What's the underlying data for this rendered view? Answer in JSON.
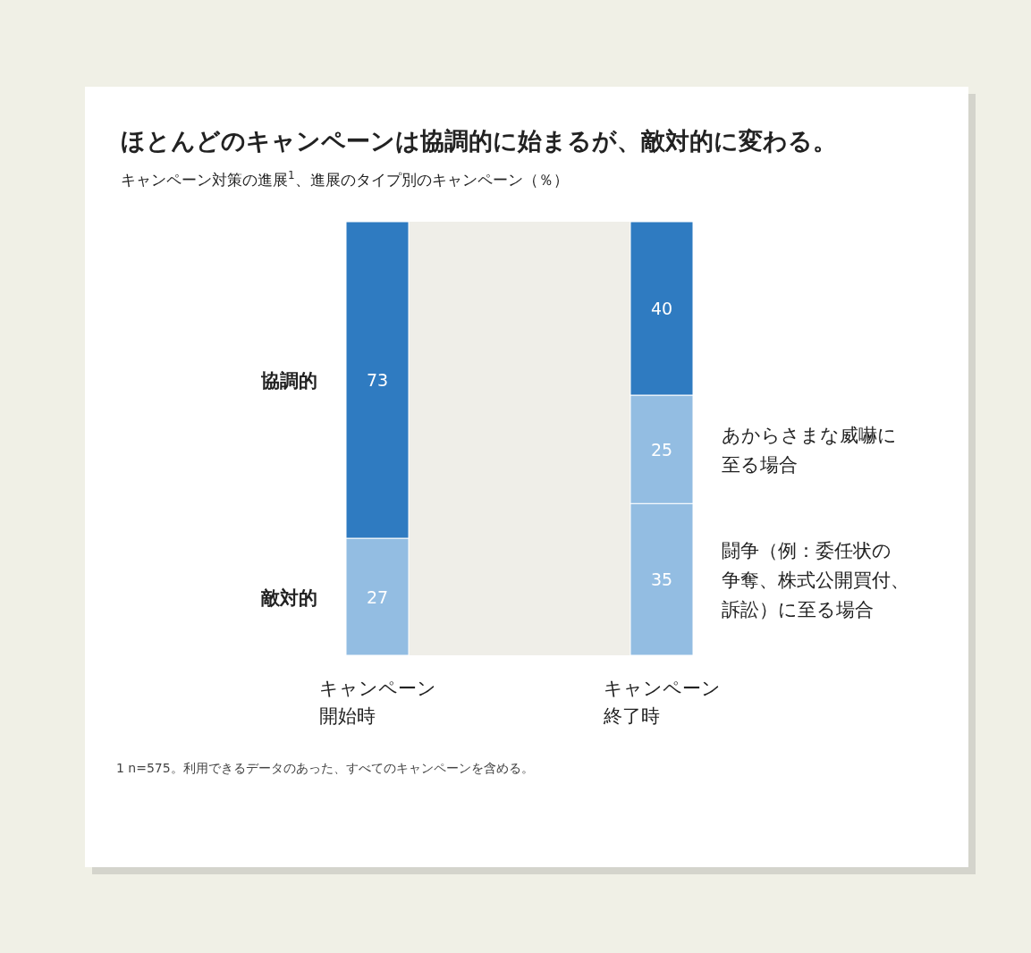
{
  "chart_data": {
    "type": "bar",
    "stacked": true,
    "data_labels": true,
    "title": "ほとんどのキャンペーンは協調的に始まるが、敵対的に変わる。",
    "subtitle": "キャンペーン対策の進展$^{1}$、進展のタイプ別のキャンペーン（％）",
    "categories": [
      "キャンペーン開始時",
      "キャンペーン終了時"
    ],
    "series": [
      {
        "name": "敵対的",
        "color": "#93bde2",
        "values": [
          27,
          null
        ]
      },
      {
        "name": "闘争（例：委任状の争奪、株式公開買付、訴訟）に至る場合",
        "color": "#93bde2",
        "values": [
          null,
          35
        ]
      },
      {
        "name": "あからさまな威嚇に至る場合",
        "color": "#93bde2",
        "values": [
          null,
          25
        ]
      },
      {
        "name": "協調的",
        "color": "#2f7bc1",
        "values": [
          73,
          40
        ]
      }
    ],
    "bands": [
      {
        "axis": "x",
        "from": "キャンペーン開始時",
        "to": "キャンペーン終了時",
        "color": "#efeee8"
      }
    ],
    "annotations": [
      "1  n=575。利用できるデータのあった、すべてのキャンペーンを含める。"
    ]
  }
}
